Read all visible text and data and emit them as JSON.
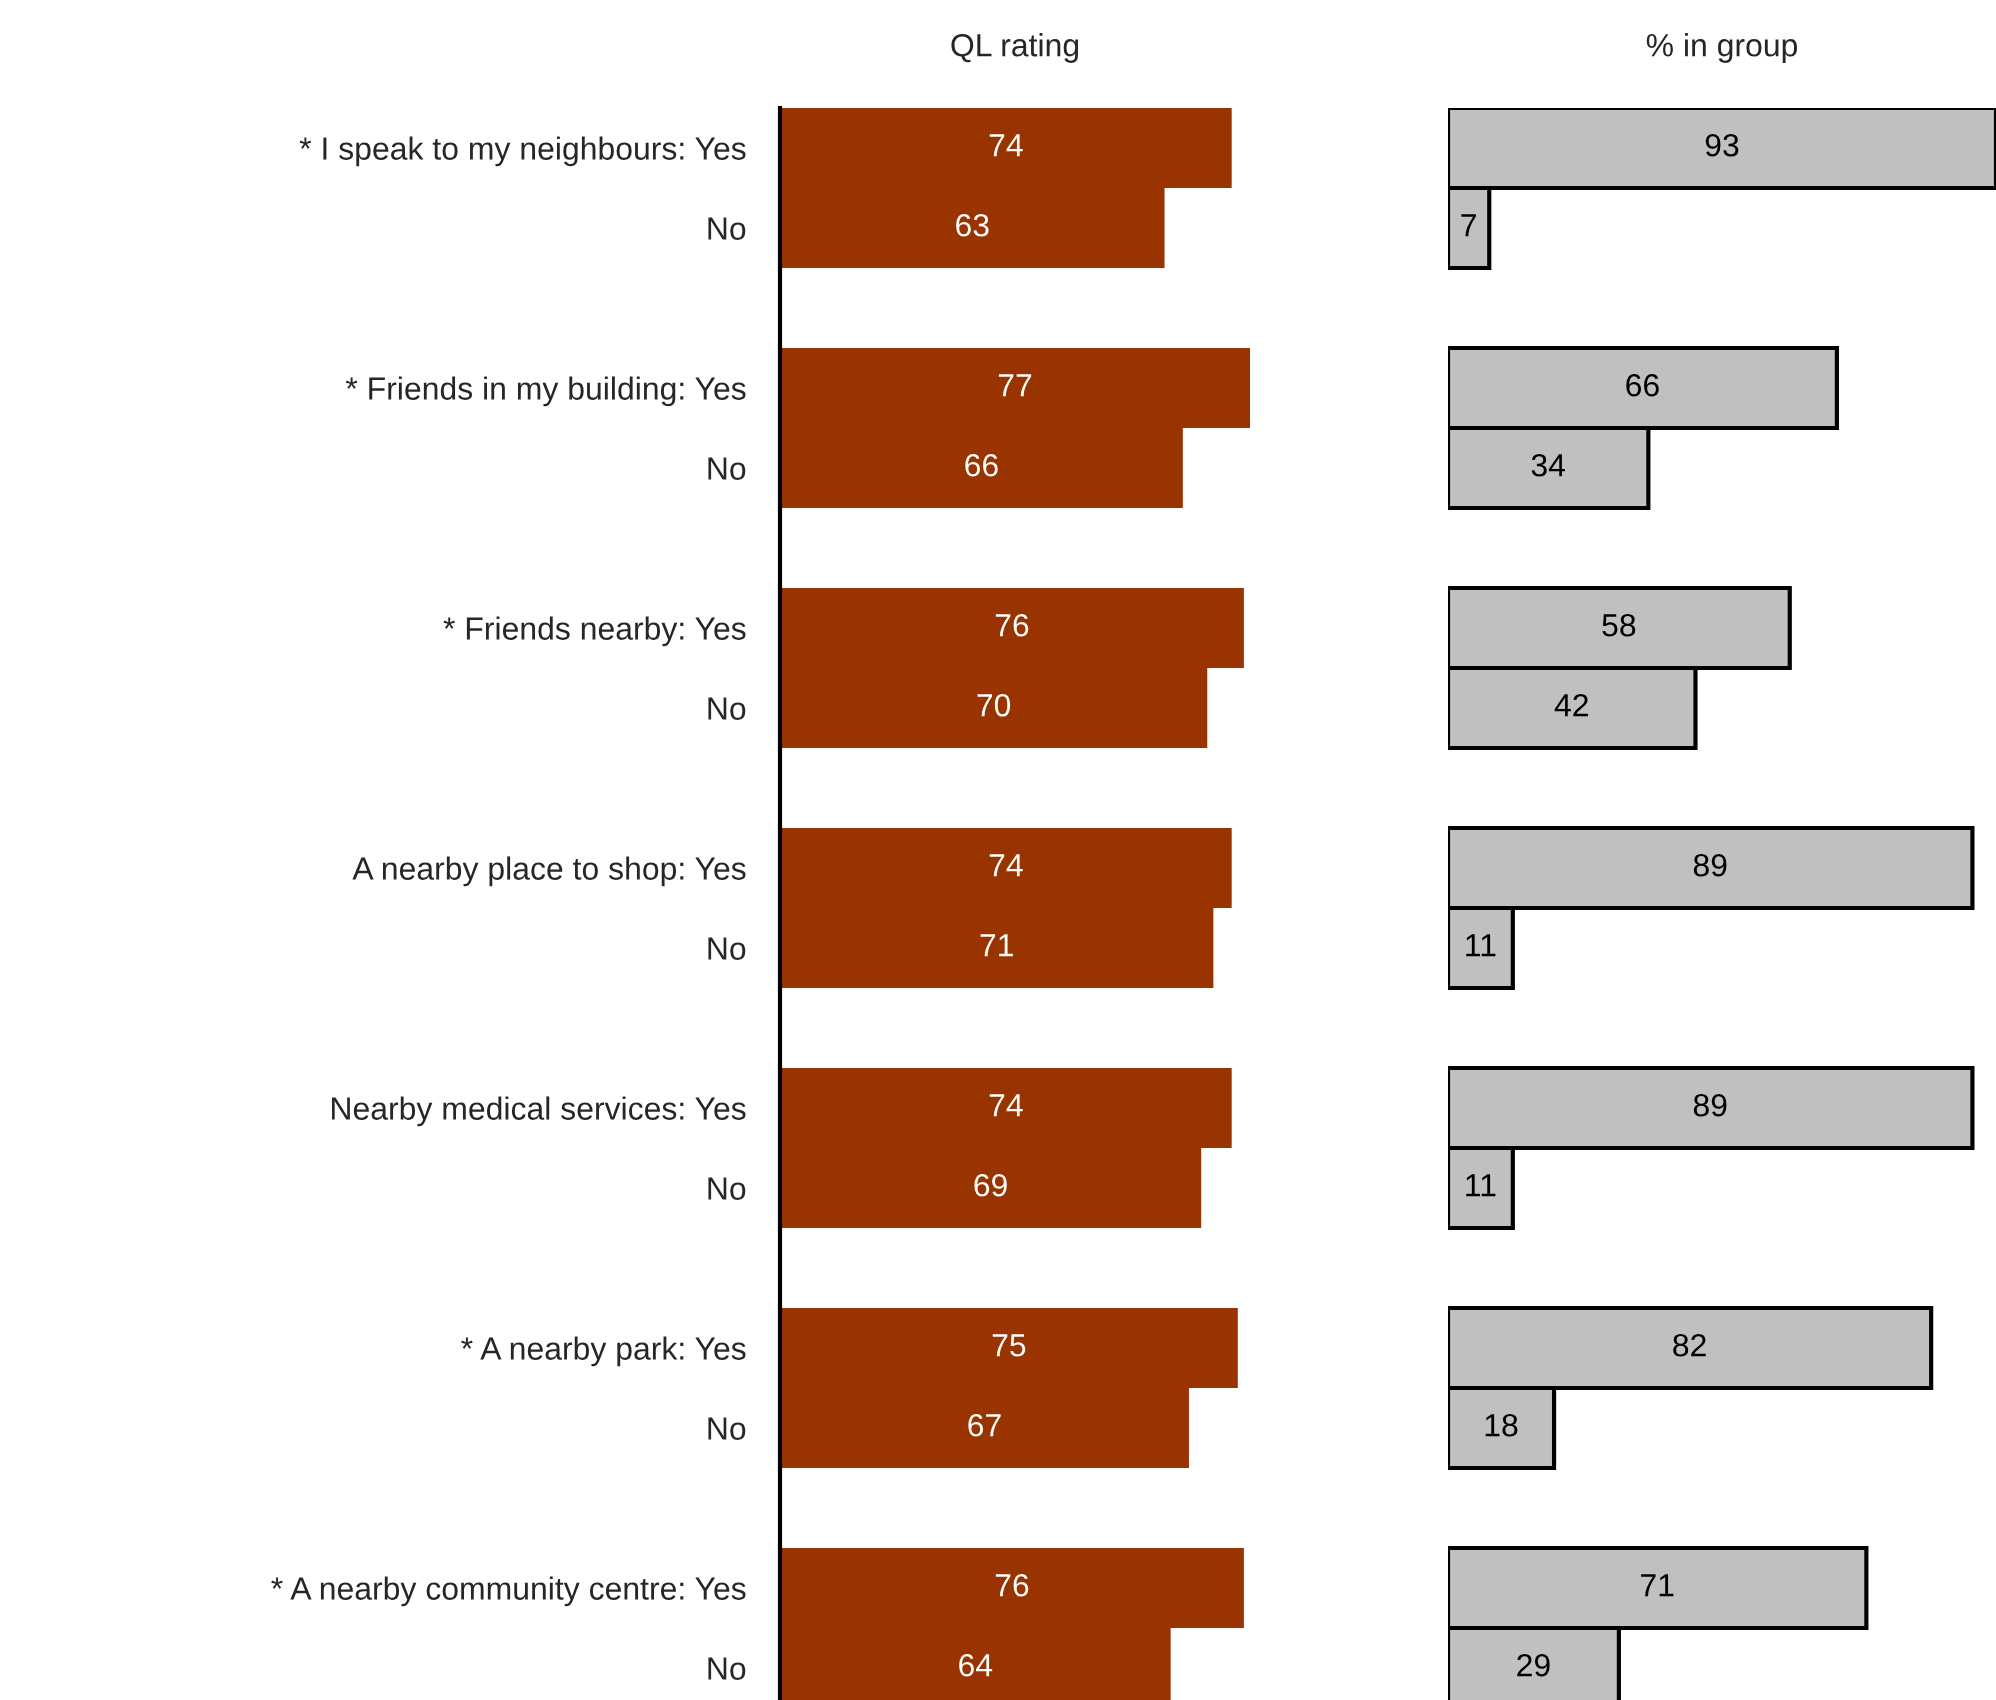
{
  "chart_data": [
    {
      "type": "bar",
      "orientation": "horizontal",
      "title": "QL rating",
      "color": "#993300",
      "data_labels": true,
      "tick_labels": "y",
      "categories": [
        "* I speak to my neighbours: Yes",
        "No",
        null,
        "* Friends in my building: Yes",
        "No",
        null,
        "* Friends nearby: Yes",
        "No",
        null,
        "A nearby place to shop: Yes",
        "No",
        null,
        "Nearby medical services: Yes",
        "No",
        null,
        "* A nearby park: Yes",
        "No",
        null,
        "* A nearby community centre: Yes",
        "No"
      ],
      "values": [
        74,
        63,
        null,
        77,
        66,
        null,
        76,
        70,
        null,
        74,
        71,
        null,
        74,
        69,
        null,
        75,
        67,
        null,
        76,
        64
      ]
    },
    {
      "type": "bar",
      "orientation": "horizontal",
      "title": "% in group",
      "color": "#c0c0c0",
      "data_labels": true,
      "tick_labels": false,
      "categories": [
        null,
        null,
        null,
        null,
        null,
        null,
        null,
        null,
        null,
        null,
        null,
        null,
        null,
        null,
        null,
        null,
        null,
        null,
        null,
        null
      ],
      "values": [
        93,
        7,
        null,
        66,
        34,
        null,
        58,
        42,
        null,
        89,
        11,
        null,
        89,
        11,
        null,
        82,
        18,
        null,
        71,
        29
      ]
    }
  ]
}
